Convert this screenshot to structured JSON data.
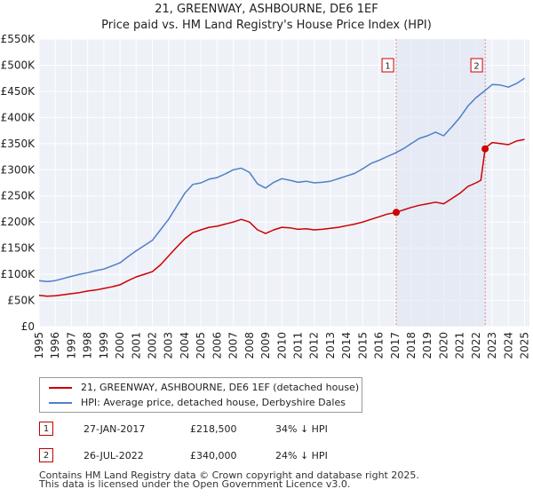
{
  "chart_data": {
    "type": "line",
    "title": "21, GREENWAY, ASHBOURNE, DE6 1EF",
    "subtitle": "Price paid vs. HM Land Registry's House Price Index (HPI)",
    "xlim": [
      1995,
      2025.3
    ],
    "ylim": [
      0,
      550000
    ],
    "x_ticks": [
      "1995",
      "1996",
      "1997",
      "1998",
      "1999",
      "2000",
      "2001",
      "2002",
      "2003",
      "2004",
      "2005",
      "2006",
      "2007",
      "2008",
      "2009",
      "2010",
      "2011",
      "2012",
      "2013",
      "2014",
      "2015",
      "2016",
      "2017",
      "2018",
      "2019",
      "2020",
      "2021",
      "2022",
      "2023",
      "2024",
      "2025"
    ],
    "y_ticks": [
      {
        "value": 0,
        "label": "£0"
      },
      {
        "value": 50000,
        "label": "£50K"
      },
      {
        "value": 100000,
        "label": "£100K"
      },
      {
        "value": 150000,
        "label": "£150K"
      },
      {
        "value": 200000,
        "label": "£200K"
      },
      {
        "value": 250000,
        "label": "£250K"
      },
      {
        "value": 300000,
        "label": "£300K"
      },
      {
        "value": 350000,
        "label": "£350K"
      },
      {
        "value": 400000,
        "label": "£400K"
      },
      {
        "value": 450000,
        "label": "£450K"
      },
      {
        "value": 500000,
        "label": "£500K"
      },
      {
        "value": 550000,
        "label": "£550K"
      }
    ],
    "series": [
      {
        "name": "21, GREENWAY, ASHBOURNE, DE6 1EF (detached house)",
        "color": "#cc0000",
        "x": [
          1995.0,
          1995.5,
          1996.0,
          1996.5,
          1997.0,
          1997.5,
          1998.0,
          1998.5,
          1999.0,
          1999.5,
          2000.0,
          2000.5,
          2001.0,
          2001.5,
          2002.0,
          2002.5,
          2003.0,
          2003.5,
          2004.0,
          2004.5,
          2005.0,
          2005.5,
          2006.0,
          2006.5,
          2007.0,
          2007.5,
          2008.0,
          2008.5,
          2009.0,
          2009.5,
          2010.0,
          2010.5,
          2011.0,
          2011.5,
          2012.0,
          2012.5,
          2013.0,
          2013.5,
          2014.0,
          2014.5,
          2015.0,
          2015.5,
          2016.0,
          2016.5,
          2017.07,
          2017.5,
          2018.0,
          2018.5,
          2019.0,
          2019.5,
          2020.0,
          2020.5,
          2021.0,
          2021.5,
          2022.0,
          2022.3,
          2022.56,
          2022.7,
          2023.0,
          2023.5,
          2024.0,
          2024.5,
          2025.0
        ],
        "values": [
          60000,
          58000,
          59000,
          61000,
          63000,
          65000,
          68000,
          70000,
          73000,
          76000,
          80000,
          88000,
          95000,
          100000,
          105000,
          118000,
          135000,
          152000,
          168000,
          180000,
          185000,
          190000,
          192000,
          196000,
          200000,
          205000,
          200000,
          185000,
          178000,
          185000,
          190000,
          189000,
          186000,
          187000,
          185000,
          186000,
          188000,
          190000,
          193000,
          196000,
          200000,
          205000,
          210000,
          215000,
          218500,
          223000,
          228000,
          232000,
          235000,
          238000,
          235000,
          245000,
          255000,
          268000,
          275000,
          280000,
          340000,
          345000,
          352000,
          350000,
          348000,
          355000,
          358000
        ]
      },
      {
        "name": "HPI: Average price, detached house, Derbyshire Dales",
        "color": "#4f7fc8",
        "x": [
          1995.0,
          1995.5,
          1996.0,
          1996.5,
          1997.0,
          1997.5,
          1998.0,
          1998.5,
          1999.0,
          1999.5,
          2000.0,
          2000.5,
          2001.0,
          2001.5,
          2002.0,
          2002.5,
          2003.0,
          2003.5,
          2004.0,
          2004.5,
          2005.0,
          2005.5,
          2006.0,
          2006.5,
          2007.0,
          2007.5,
          2008.0,
          2008.5,
          2009.0,
          2009.5,
          2010.0,
          2010.5,
          2011.0,
          2011.5,
          2012.0,
          2012.5,
          2013.0,
          2013.5,
          2014.0,
          2014.5,
          2015.0,
          2015.5,
          2016.0,
          2016.5,
          2017.0,
          2017.5,
          2018.0,
          2018.5,
          2019.0,
          2019.5,
          2020.0,
          2020.5,
          2021.0,
          2021.5,
          2022.0,
          2022.5,
          2023.0,
          2023.5,
          2024.0,
          2024.5,
          2025.0
        ],
        "values": [
          88000,
          86000,
          88000,
          92000,
          96000,
          100000,
          103000,
          107000,
          110000,
          116000,
          122000,
          134000,
          145000,
          155000,
          165000,
          185000,
          205000,
          230000,
          255000,
          272000,
          275000,
          282000,
          285000,
          292000,
          300000,
          303000,
          295000,
          273000,
          265000,
          276000,
          283000,
          280000,
          276000,
          278000,
          275000,
          276000,
          278000,
          283000,
          288000,
          293000,
          302000,
          312000,
          318000,
          325000,
          332000,
          340000,
          350000,
          360000,
          365000,
          372000,
          365000,
          382000,
          400000,
          422000,
          438000,
          450000,
          463000,
          462000,
          458000,
          465000,
          475000
        ]
      }
    ],
    "markers": [
      {
        "label": "1",
        "x": 2017.07,
        "y": 218500
      },
      {
        "label": "2",
        "x": 2022.56,
        "y": 340000
      }
    ]
  },
  "legend": {
    "items": [
      {
        "label": "21, GREENWAY, ASHBOURNE, DE6 1EF (detached house)",
        "color": "#cc0000"
      },
      {
        "label": "HPI: Average price, detached house, Derbyshire Dales",
        "color": "#4f7fc8"
      }
    ]
  },
  "transactions": [
    {
      "num": "1",
      "date": "27-JAN-2017",
      "price": "£218,500",
      "hpi": "34% ↓ HPI"
    },
    {
      "num": "2",
      "date": "26-JUL-2022",
      "price": "£340,000",
      "hpi": "24% ↓ HPI"
    }
  ],
  "footer": {
    "line1": "Contains HM Land Registry data © Crown copyright and database right 2025.",
    "line2": "This data is licensed under the Open Government Licence v3.0."
  }
}
